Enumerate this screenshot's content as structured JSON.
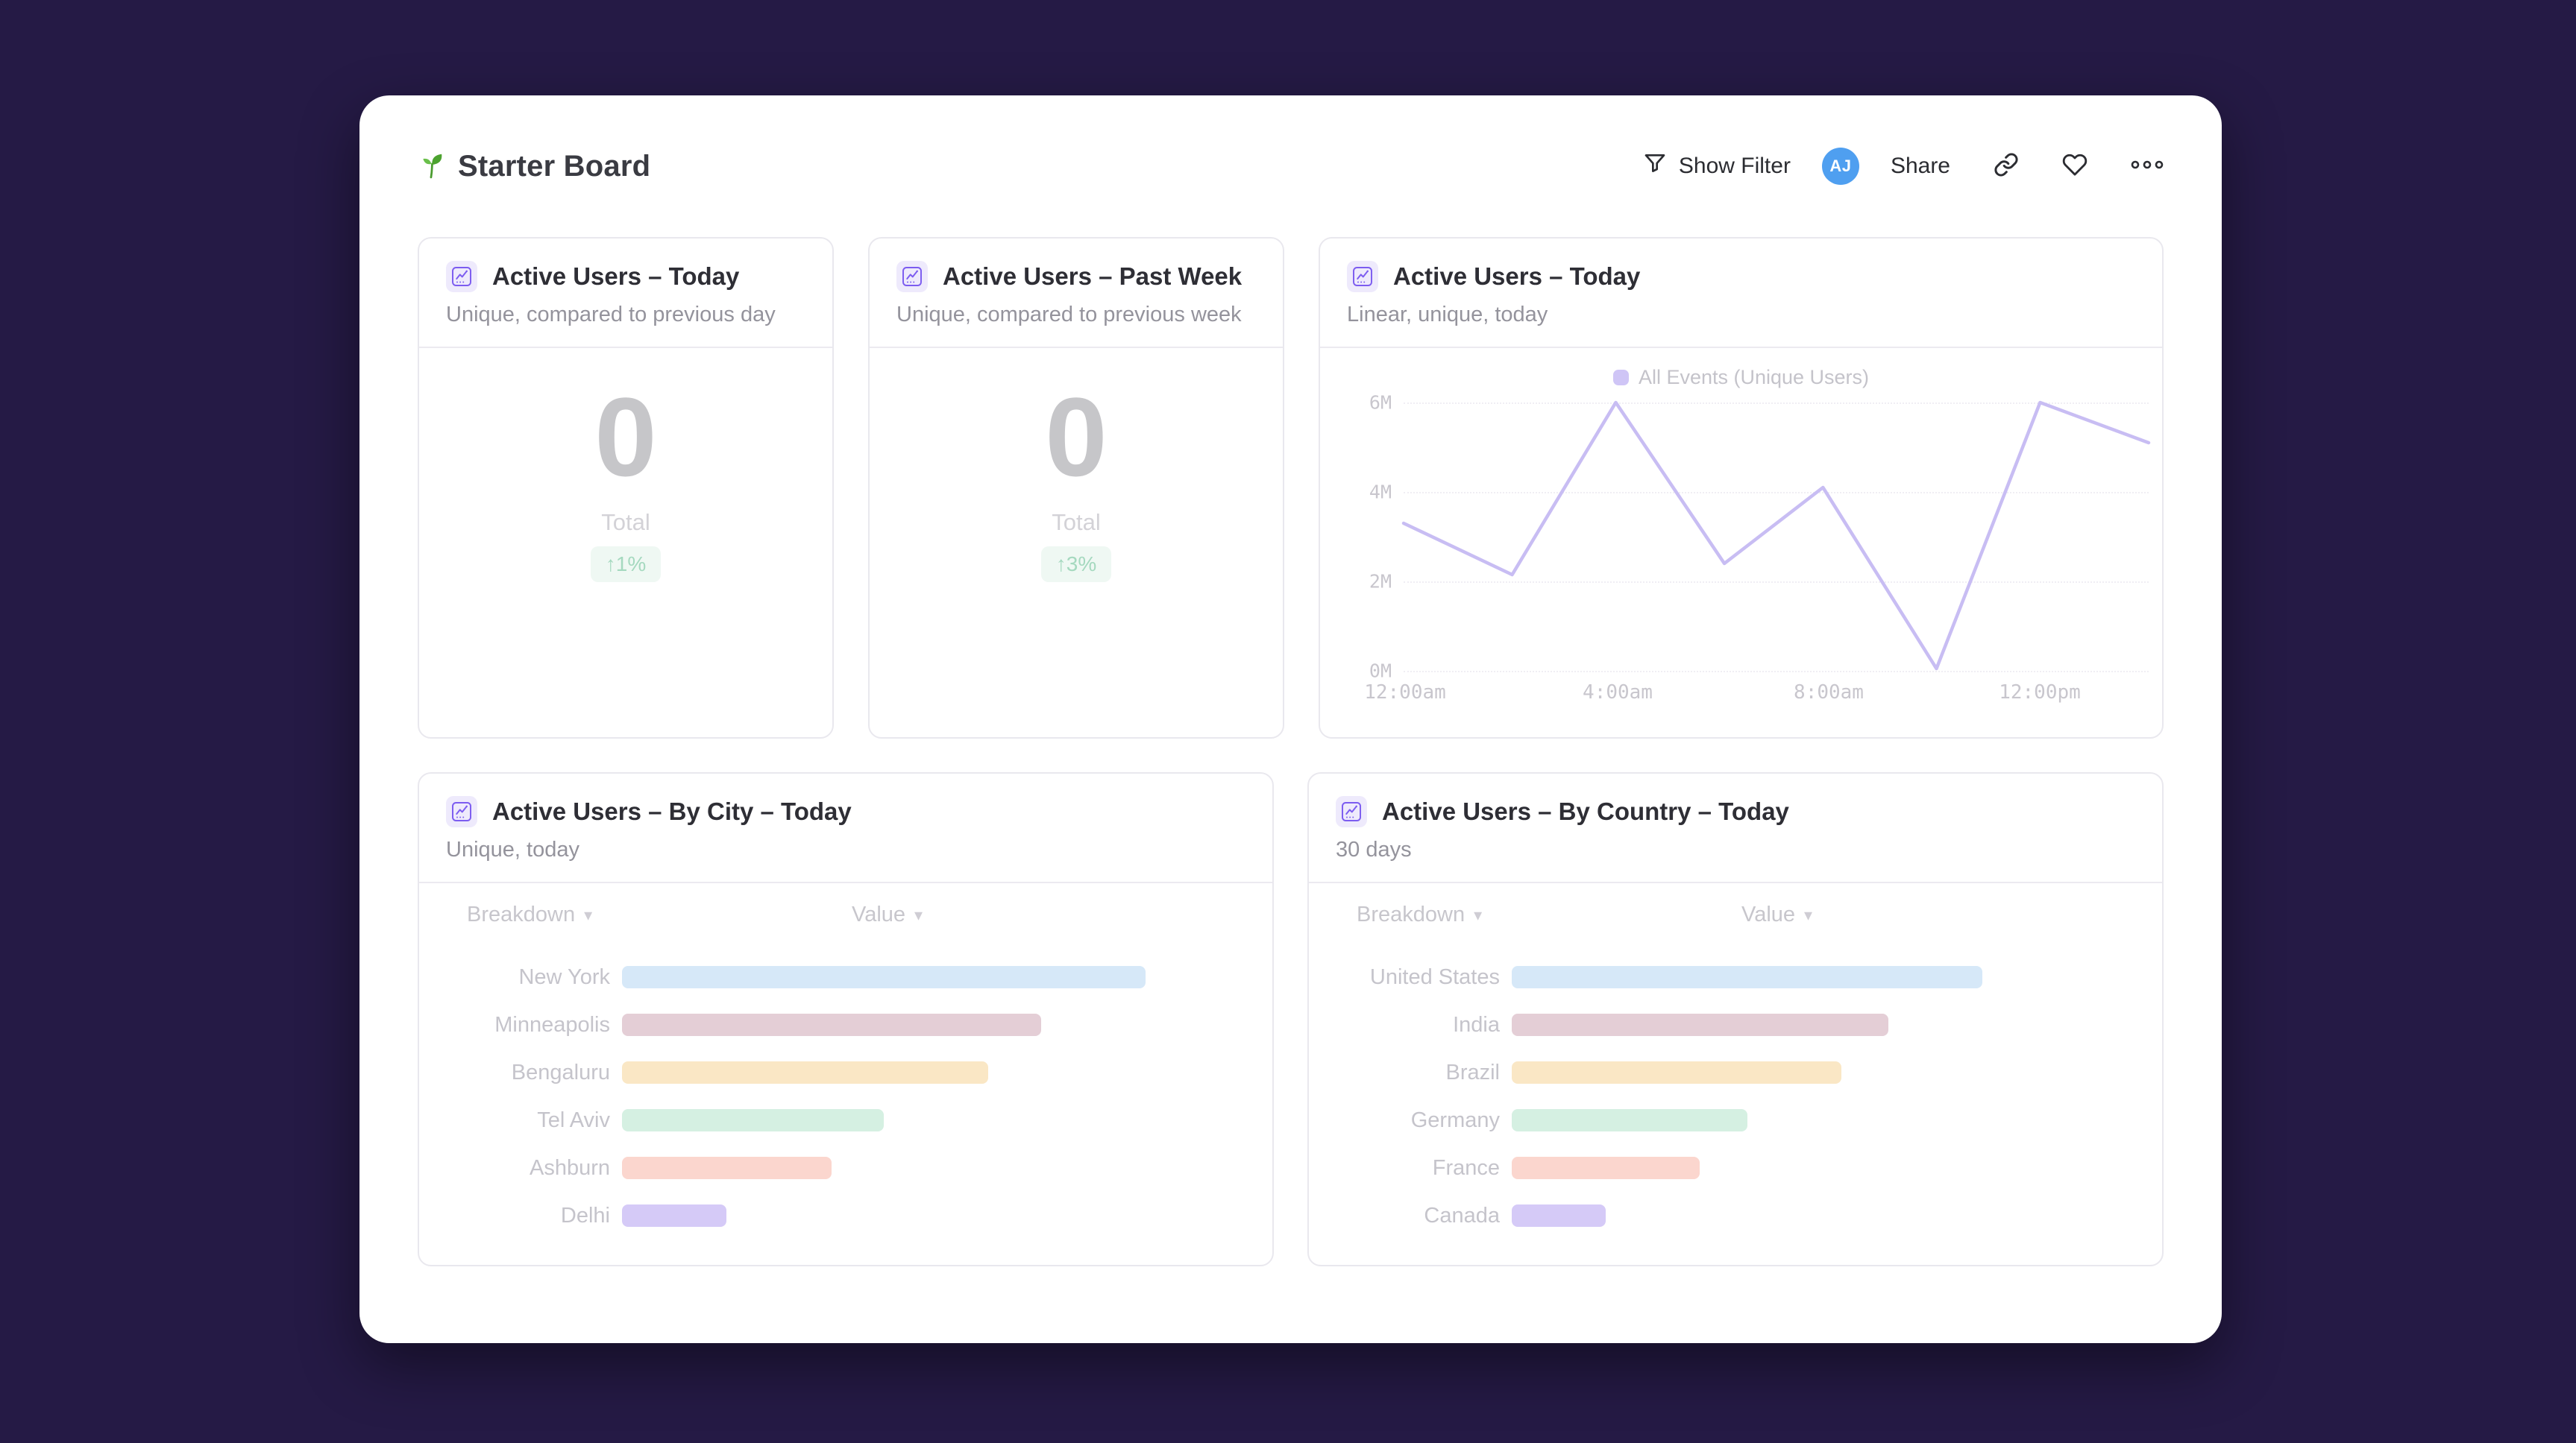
{
  "app": {
    "board_title": "Starter Board",
    "board_icon": "seedling-icon"
  },
  "header": {
    "show_filter_label": "Show Filter",
    "avatar_initials": "AJ",
    "share_label": "Share",
    "icons": [
      "filter-icon",
      "link-icon",
      "heart-icon",
      "more-dots-icon"
    ]
  },
  "colors": {
    "page_background": "#251a45",
    "panel_background": "#ffffff",
    "avatar_blue": "#4f9ff0",
    "card_icon_purple": "#7c5cf0",
    "line_series": "#c8bdf3",
    "delta_badge_green": "#a5d9bf",
    "bar_blue": "#d6e8f8",
    "bar_rose": "#e4ced6",
    "bar_peach": "#fae7c5",
    "bar_mint": "#d5f0e2",
    "bar_salmon": "#fbd6ce",
    "bar_lavender": "#d5caf7"
  },
  "cards": {
    "today": {
      "title": "Active Users – Today",
      "subtitle": "Unique, compared to previous day",
      "value": "0",
      "value_label": "Total",
      "delta": "↑1%"
    },
    "past_week": {
      "title": "Active Users – Past Week",
      "subtitle": "Unique, compared to previous week",
      "value": "0",
      "value_label": "Total",
      "delta": "↑3%"
    },
    "line": {
      "title": "Active Users – Today",
      "subtitle": "Linear, unique, today",
      "legend": "All Events (Unique Users)",
      "y_ticks": [
        "6M",
        "4M",
        "2M",
        "0M"
      ],
      "x_ticks": [
        "12:00am",
        "4:00am",
        "8:00am",
        "12:00pm"
      ]
    },
    "by_city": {
      "title": "Active Users – By City – Today",
      "subtitle": "Unique, today",
      "col_breakdown": "Breakdown",
      "col_value": "Value",
      "sort_caret": "▾",
      "rows": [
        {
          "label": "New York",
          "pct": 100,
          "color": "#d6e8f8"
        },
        {
          "label": "Minneapolis",
          "pct": 80,
          "color": "#e4ced6"
        },
        {
          "label": "Bengaluru",
          "pct": 70,
          "color": "#fae7c5"
        },
        {
          "label": "Tel Aviv",
          "pct": 50,
          "color": "#d5f0e2"
        },
        {
          "label": "Ashburn",
          "pct": 40,
          "color": "#fbd6ce"
        },
        {
          "label": "Delhi",
          "pct": 20,
          "color": "#d5caf7"
        }
      ]
    },
    "by_country": {
      "title": "Active Users – By Country – Today",
      "subtitle": "30 days",
      "col_breakdown": "Breakdown",
      "col_value": "Value",
      "sort_caret": "▾",
      "rows": [
        {
          "label": "United States",
          "pct": 100,
          "color": "#d6e8f8"
        },
        {
          "label": "India",
          "pct": 80,
          "color": "#e4ced6"
        },
        {
          "label": "Brazil",
          "pct": 70,
          "color": "#fae7c5"
        },
        {
          "label": "Germany",
          "pct": 50,
          "color": "#d5f0e2"
        },
        {
          "label": "France",
          "pct": 40,
          "color": "#fbd6ce"
        },
        {
          "label": "Canada",
          "pct": 20,
          "color": "#d5caf7"
        }
      ]
    }
  },
  "chart_data": [
    {
      "type": "line",
      "title": "Active Users – Today",
      "subtitle": "Linear, unique, today",
      "legend_position": "top",
      "grid": "horizontal-dotted",
      "ylim_millions": [
        0,
        6
      ],
      "y_tick_labels": [
        "0M",
        "2M",
        "4M",
        "6M"
      ],
      "x_tick_labels": [
        "12:00am",
        "4:00am",
        "8:00am",
        "12:00pm"
      ],
      "series": [
        {
          "name": "All Events (Unique Users)",
          "color": "#c8bdf3",
          "x_hours": [
            0,
            2.2,
            4.3,
            6.5,
            8.5,
            10.8,
            12.9,
            15.1
          ],
          "values_millions": [
            3.3,
            2.15,
            6.0,
            2.4,
            4.1,
            0.05,
            6.0,
            5.1
          ]
        }
      ]
    },
    {
      "type": "bar",
      "orientation": "horizontal",
      "title": "Active Users – By City – Today",
      "categories": [
        "New York",
        "Minneapolis",
        "Bengaluru",
        "Tel Aviv",
        "Ashburn",
        "Delhi"
      ],
      "values_pct_of_max": [
        100,
        80,
        70,
        50,
        40,
        20
      ]
    },
    {
      "type": "bar",
      "orientation": "horizontal",
      "title": "Active Users – By Country – Today",
      "categories": [
        "United States",
        "India",
        "Brazil",
        "Germany",
        "France",
        "Canada"
      ],
      "values_pct_of_max": [
        100,
        80,
        70,
        50,
        40,
        20
      ]
    }
  ]
}
